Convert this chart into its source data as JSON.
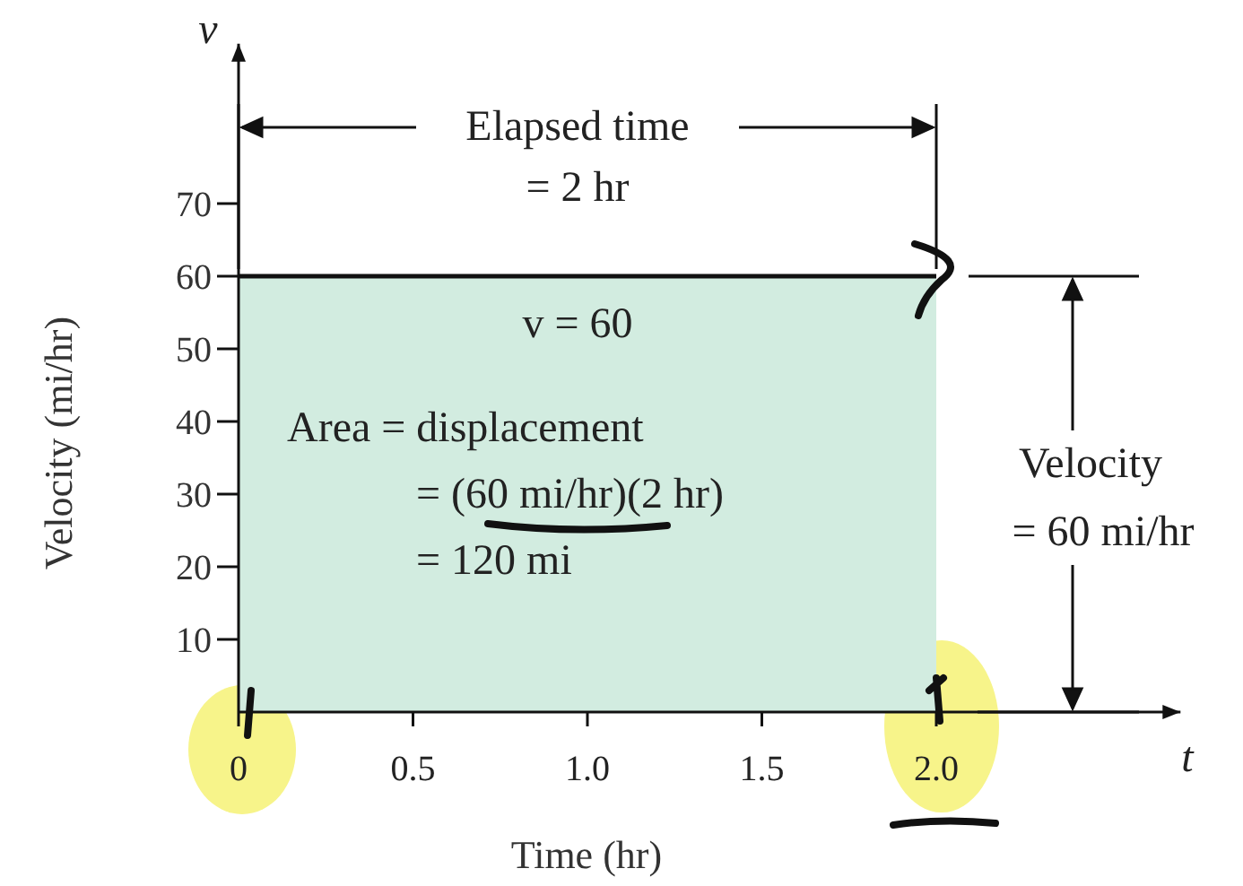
{
  "chart_data": {
    "type": "area",
    "xlabel": "Time (hr)",
    "ylabel": "Velocity (mi/hr)",
    "x": [
      0,
      2
    ],
    "series": [
      {
        "color": "#d2ece0",
        "values": [
          60,
          60
        ]
      }
    ],
    "xlim": [
      0,
      2.7
    ],
    "ylim": [
      0,
      92
    ],
    "xticks": [
      0,
      {
        "value": 0.5,
        "label": "0.5"
      },
      {
        "value": 1,
        "label": "1.0"
      },
      {
        "value": 1.5,
        "label": "1.5"
      },
      {
        "value": 2,
        "label": "2.0"
      }
    ],
    "yticks": [
      10,
      20,
      30,
      40,
      50,
      60,
      70
    ],
    "annotations": [
      "Elapsed time",
      "= 2 hr",
      "v = 60",
      "Area = displacement",
      "= (60 mi/hr)(2 hr)",
      "= 120 mi",
      "Velocity",
      "= 60 mi/hr",
      "v",
      "t"
    ]
  }
}
